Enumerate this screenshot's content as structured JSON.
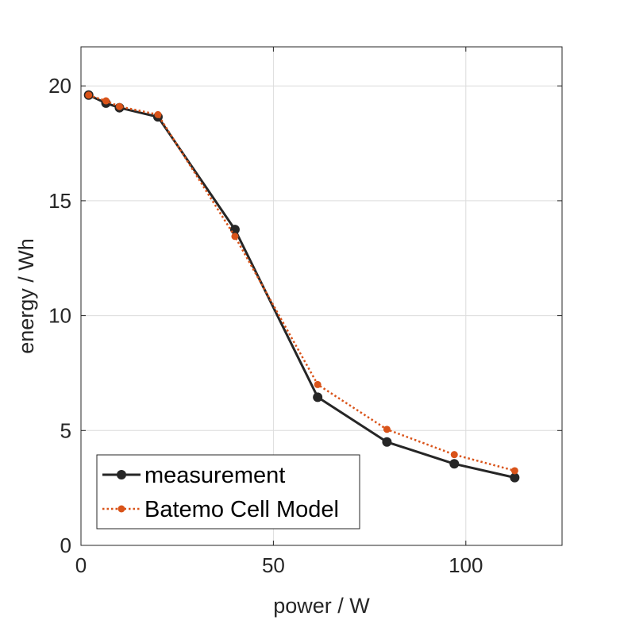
{
  "chart_data": {
    "type": "line",
    "title": "",
    "xlabel": "power / W",
    "ylabel": "energy / Wh",
    "xlim": [
      0,
      125
    ],
    "ylim": [
      0,
      21.7
    ],
    "xticks": [
      0,
      50,
      100
    ],
    "yticks": [
      0,
      5,
      10,
      15,
      20
    ],
    "grid": true,
    "legend_position": "bottom-left",
    "series": [
      {
        "name": "measurement",
        "color": "#262626",
        "line_style": "solid",
        "marker": "circle",
        "x": [
          2.0,
          6.5,
          10.0,
          20.0,
          40.0,
          61.5,
          79.5,
          97.0,
          112.7
        ],
        "y": [
          19.6,
          19.25,
          19.05,
          18.65,
          13.75,
          6.45,
          4.5,
          3.55,
          2.95
        ]
      },
      {
        "name": "Batemo Cell Model",
        "color": "#d95319",
        "line_style": "dotted",
        "marker": "circle",
        "x": [
          2.0,
          6.5,
          10.0,
          20.0,
          40.0,
          61.5,
          79.5,
          97.0,
          112.7
        ],
        "y": [
          19.6,
          19.35,
          19.1,
          18.75,
          13.45,
          7.0,
          5.05,
          3.95,
          3.25
        ]
      }
    ]
  }
}
